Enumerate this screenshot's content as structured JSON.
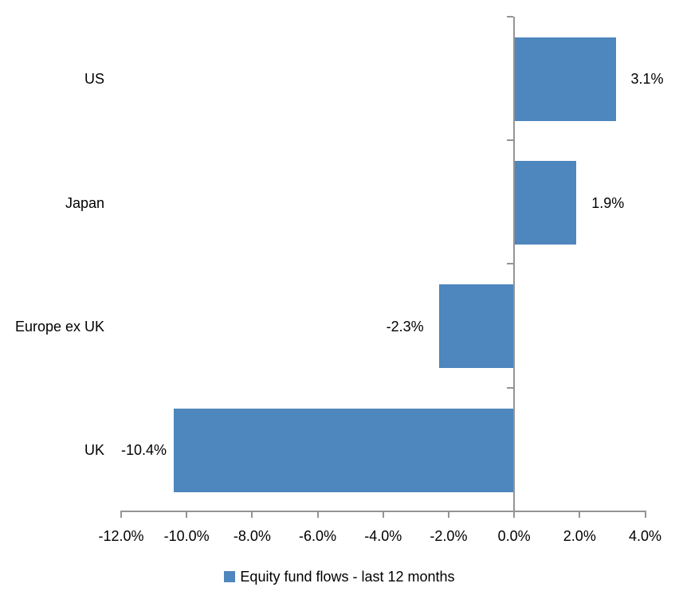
{
  "chart_data": {
    "type": "bar",
    "orientation": "horizontal",
    "title": "",
    "xlabel": "",
    "ylabel": "",
    "categories": [
      "US",
      "Japan",
      "Europe ex UK",
      "UK"
    ],
    "values": [
      3.1,
      1.9,
      -2.3,
      -10.4
    ],
    "data_labels": [
      "3.1%",
      "1.9%",
      "-2.3%",
      "-10.4%"
    ],
    "series_name": "Equity fund flows - last 12 months",
    "xlim": [
      -12,
      4
    ],
    "x_tick_step": 2,
    "x_tick_labels": [
      "-12.0%",
      "-10.0%",
      "-8.0%",
      "-6.0%",
      "-4.0%",
      "-2.0%",
      "0.0%",
      "2.0%",
      "4.0%"
    ],
    "grid": false,
    "legend_position": "bottom",
    "colors": {
      "bar_fill": "#4e86be",
      "axis_line": "#949494",
      "text": "#000000",
      "background": "#ffffff"
    }
  },
  "legend": {
    "label": "Equity fund flows - last 12 months"
  }
}
